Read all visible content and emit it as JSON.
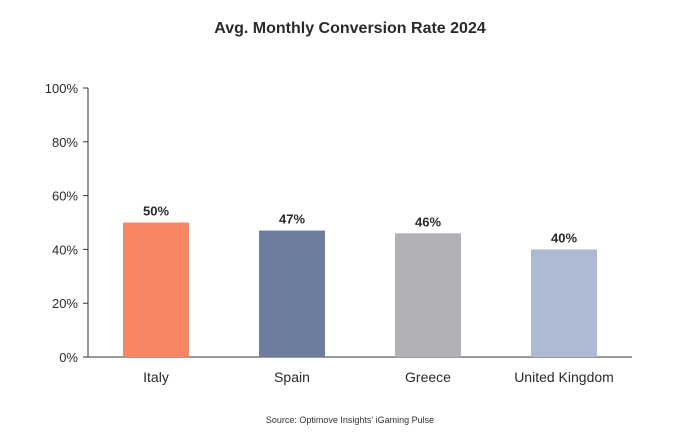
{
  "chart_data": {
    "type": "bar",
    "title": "Avg. Monthly Conversion Rate 2024",
    "xlabel": "",
    "ylabel": "",
    "categories": [
      "Italy",
      "Spain",
      "Greece",
      "United Kingdom"
    ],
    "values": [
      50,
      47,
      46,
      40
    ],
    "data_labels": [
      "50%",
      "47%",
      "46%",
      "40%"
    ],
    "colors": [
      "#F78764",
      "#6E7C9E",
      "#B2B1B6",
      "#AEBAD4"
    ],
    "ylim": [
      0,
      100
    ],
    "yticks": [
      0,
      20,
      40,
      60,
      80,
      100
    ],
    "ytick_labels": [
      "0%",
      "20%",
      "40%",
      "60%",
      "80%",
      "100%"
    ],
    "grid": false,
    "legend": "none"
  },
  "source_text": "Source: Optimove Insights' iGaming Pulse"
}
